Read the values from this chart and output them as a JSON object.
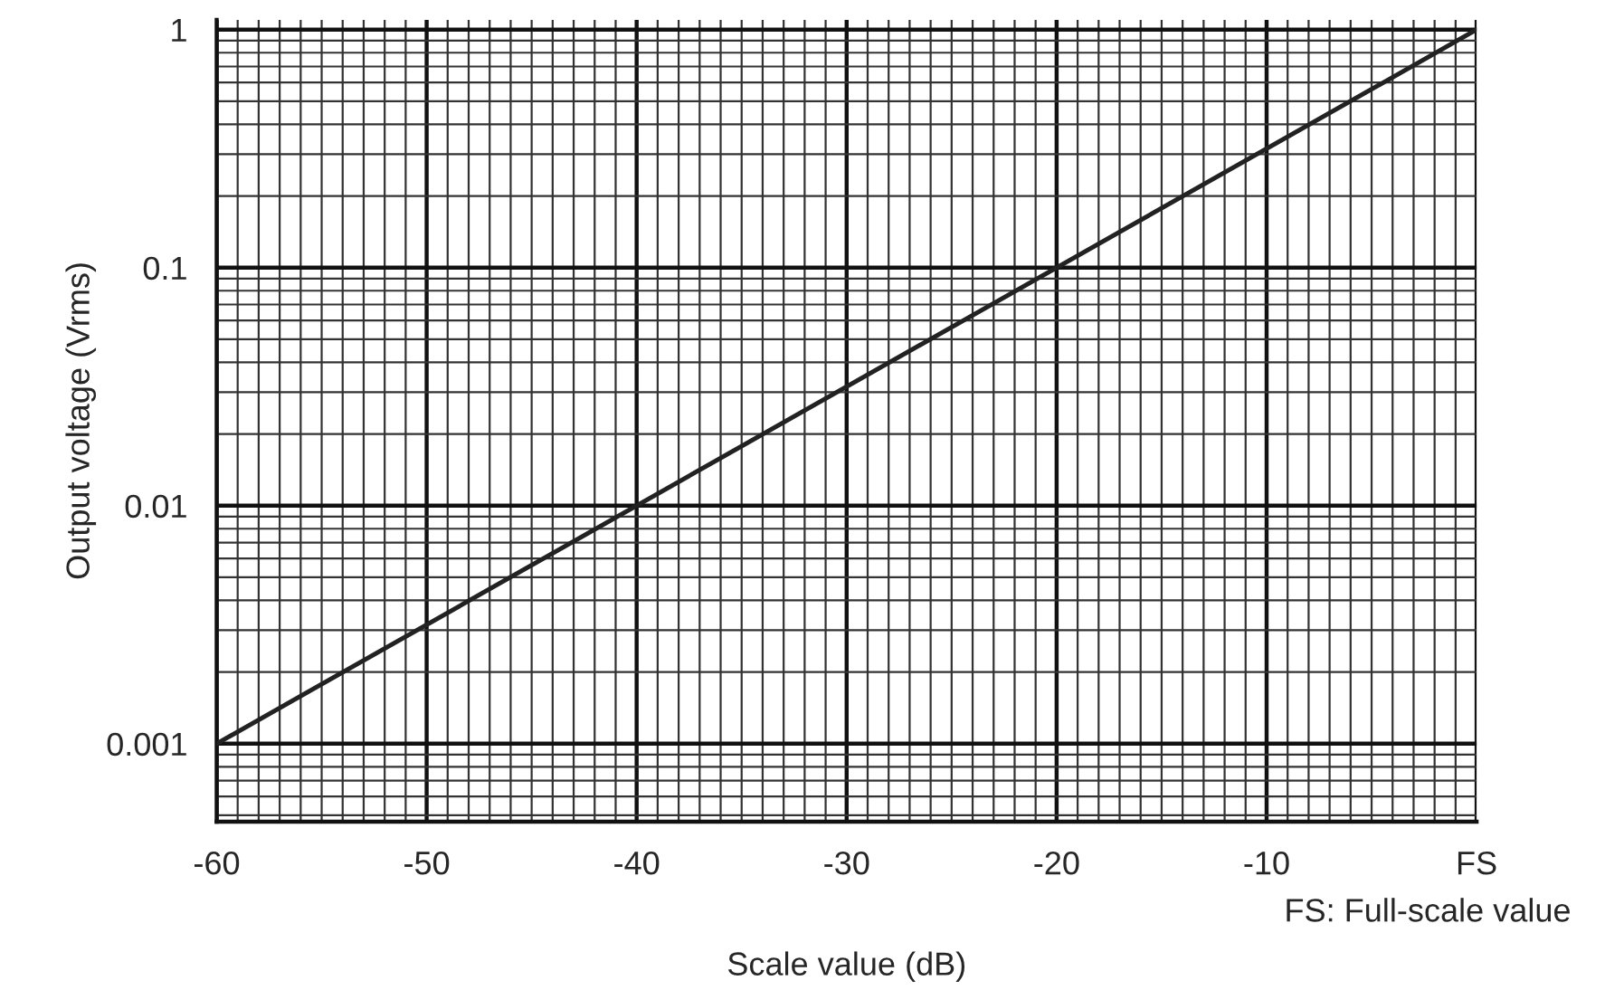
{
  "chart_data": {
    "type": "line",
    "xlabel": "Scale value (dB)",
    "ylabel": "Output voltage (Vrms)",
    "x": [
      -60,
      0
    ],
    "series": [
      {
        "color": "#222222",
        "values": [
          0.001,
          1
        ]
      }
    ],
    "xlim": [
      -60,
      0
    ],
    "xticks": [
      -60,
      -50,
      -40,
      -30,
      -20,
      -10,
      {
        "value": 0,
        "label": "FS"
      }
    ],
    "log": "y",
    "ylim": [
      0.00047,
      1.1
    ],
    "yticks": [
      0.001,
      0.01,
      0.1,
      1
    ],
    "grid": true,
    "marker": "none",
    "line_style": "solid",
    "legend": false,
    "annotations": [
      "FS: Full-scale value"
    ]
  }
}
